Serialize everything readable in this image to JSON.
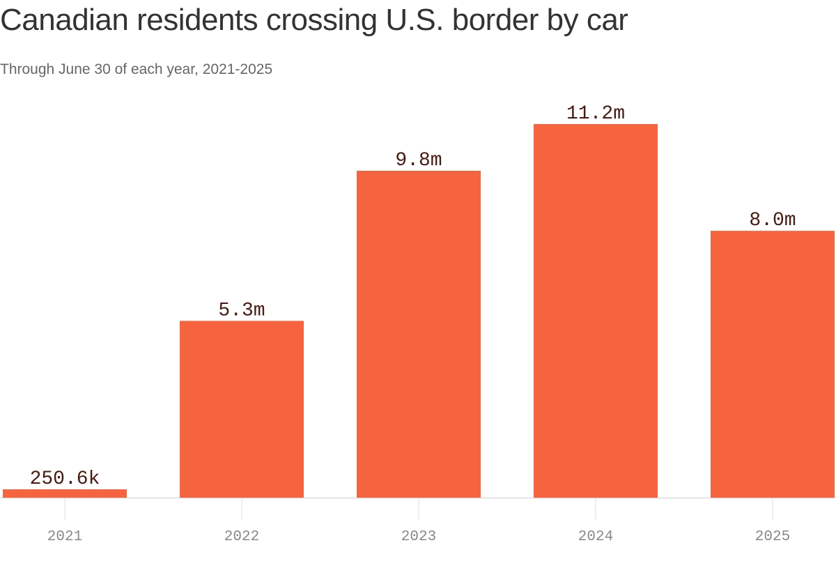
{
  "header": {
    "title": "Canadian residents crossing U.S. border by car",
    "subtitle": "Through June 30 of each year, 2021-2025"
  },
  "colors": {
    "bar": "#f5643e",
    "data_label": "#4a1a0f",
    "tick_label": "#888888",
    "axis": "#dddddd"
  },
  "chart_data": {
    "type": "bar",
    "title": "Canadian residents crossing U.S. border by car",
    "subtitle": "Through June 30 of each year, 2021-2025",
    "xlabel": "",
    "ylabel": "",
    "categories": [
      "2021",
      "2022",
      "2023",
      "2024",
      "2025"
    ],
    "values": [
      0.2506,
      5.3,
      9.8,
      11.2,
      8.0
    ],
    "value_unit": "millions",
    "data_labels": [
      "250.6k",
      "5.3m",
      "9.8m",
      "11.2m",
      "8.0m"
    ],
    "ylim": [
      0,
      11.2
    ],
    "grid": false,
    "legend": "none"
  }
}
